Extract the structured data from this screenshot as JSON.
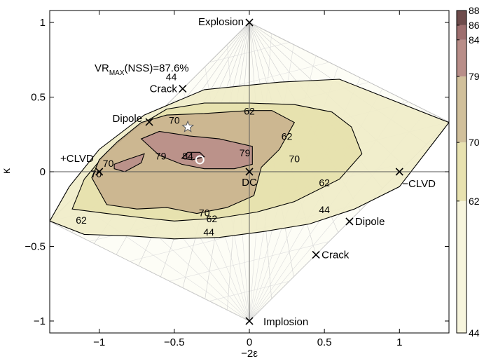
{
  "chart_data": {
    "type": "contour",
    "xlabel": "−2ε",
    "ylabel": "κ",
    "xlim": [
      -1.33,
      1.33
    ],
    "ylim": [
      -1.08,
      1.08
    ],
    "xticks": [
      {
        "v": -1,
        "label": "−1"
      },
      {
        "v": -0.5,
        "label": "−0.5"
      },
      {
        "v": 0,
        "label": "0"
      },
      {
        "v": 0.5,
        "label": "0.5"
      },
      {
        "v": 1,
        "label": "1"
      }
    ],
    "yticks": [
      {
        "v": 1,
        "label": "1"
      },
      {
        "v": 0.5,
        "label": "0.5"
      },
      {
        "v": 0,
        "label": "0"
      },
      {
        "v": -0.5,
        "label": "−0.5"
      },
      {
        "v": -1,
        "label": "−1"
      }
    ],
    "annotation": {
      "prefix": "VR",
      "subscript": "MAX",
      "suffix": "(NSS)=87.6%"
    },
    "source_points": [
      {
        "label": "Explosion",
        "x": 0,
        "y": 1
      },
      {
        "label": "Crack",
        "x": -0.444,
        "y": 0.556
      },
      {
        "label": "Dipole",
        "x": -0.667,
        "y": 0.333
      },
      {
        "label": "+CLVD",
        "x": -1,
        "y": 0
      },
      {
        "label": "DC",
        "x": 0,
        "y": 0
      },
      {
        "label": "−CLVD",
        "x": 1,
        "y": 0
      },
      {
        "label": "Dipole",
        "x": 0.667,
        "y": -0.333
      },
      {
        "label": "Crack",
        "x": 0.444,
        "y": -0.556
      },
      {
        "label": "Implosion",
        "x": 0,
        "y": -1
      }
    ],
    "best_fit_star": {
      "x": -0.41,
      "y": 0.3
    },
    "best_fit_circle": {
      "x": -0.33,
      "y": 0.08
    },
    "contours": [
      {
        "level": 44,
        "color": "#f0ecc8",
        "points": [
          [
            -1.33,
            -0.33
          ],
          [
            -1.1,
            -0.42
          ],
          [
            -0.8,
            -0.43
          ],
          [
            -0.5,
            -0.45
          ],
          [
            -0.2,
            -0.44
          ],
          [
            0.1,
            -0.4
          ],
          [
            0.4,
            -0.35
          ],
          [
            0.7,
            -0.25
          ],
          [
            1.0,
            -0.1
          ],
          [
            1.33,
            0.33
          ],
          [
            0.9,
            0.5
          ],
          [
            0.6,
            0.62
          ],
          [
            0.2,
            0.6
          ],
          [
            -0.3,
            0.55
          ],
          [
            -0.7,
            0.38
          ],
          [
            -1.0,
            0.15
          ],
          [
            -1.2,
            -0.1
          ]
        ]
      },
      {
        "level": 62,
        "color": "#e6e0ac",
        "points": [
          [
            -1.18,
            -0.25
          ],
          [
            -0.95,
            -0.28
          ],
          [
            -0.7,
            -0.31
          ],
          [
            -0.5,
            -0.33
          ],
          [
            -0.2,
            -0.31
          ],
          [
            0.05,
            -0.27
          ],
          [
            0.3,
            -0.2
          ],
          [
            0.6,
            -0.05
          ],
          [
            0.75,
            0.12
          ],
          [
            0.68,
            0.3
          ],
          [
            0.55,
            0.4
          ],
          [
            0.3,
            0.45
          ],
          [
            0,
            0.46
          ],
          [
            -0.3,
            0.46
          ],
          [
            -0.55,
            0.42
          ],
          [
            -0.75,
            0.3
          ],
          [
            -0.95,
            0.13
          ],
          [
            -1.1,
            -0.05
          ]
        ]
      },
      {
        "level": 70,
        "color": "#c9b28e",
        "points": [
          [
            -1.05,
            -0.04
          ],
          [
            -0.95,
            -0.22
          ],
          [
            -0.75,
            -0.25
          ],
          [
            -0.55,
            -0.24
          ],
          [
            -0.35,
            -0.28
          ],
          [
            -0.15,
            -0.24
          ],
          [
            0.03,
            -0.16
          ],
          [
            0.08,
            0.03
          ],
          [
            0.2,
            0.15
          ],
          [
            0.3,
            0.33
          ],
          [
            0.15,
            0.41
          ],
          [
            0,
            0.41
          ],
          [
            -0.3,
            0.39
          ],
          [
            -0.55,
            0.38
          ],
          [
            -0.72,
            0.33
          ],
          [
            -0.88,
            0.2
          ],
          [
            -1.0,
            0.08
          ]
        ]
      },
      {
        "level": 79,
        "color": "#b98e89",
        "points": [
          [
            -0.72,
            0.22
          ],
          [
            -0.6,
            0.11
          ],
          [
            -0.45,
            0.05
          ],
          [
            -0.3,
            0.02
          ],
          [
            -0.1,
            0.02
          ],
          [
            0.02,
            0.05
          ],
          [
            0.02,
            0.17
          ],
          [
            -0.2,
            0.22
          ],
          [
            -0.4,
            0.24
          ],
          [
            -0.6,
            0.27
          ]
        ]
      },
      {
        "level": 79,
        "color": "#b98e89",
        "points": [
          [
            -0.9,
            0.02
          ],
          [
            -0.83,
            0
          ],
          [
            -0.72,
            0.06
          ],
          [
            -0.7,
            0.12
          ],
          [
            -0.82,
            0.08
          ],
          [
            -0.9,
            0.05
          ]
        ]
      },
      {
        "level": 84,
        "color": "#9e6f6f",
        "points": [
          [
            -0.45,
            0.09
          ],
          [
            -0.38,
            0.08
          ],
          [
            -0.3,
            0.1
          ],
          [
            -0.33,
            0.13
          ],
          [
            -0.41,
            0.13
          ]
        ]
      }
    ],
    "contour_labels": [
      {
        "text": "44",
        "x": -0.52,
        "y": 0.63
      },
      {
        "text": "62",
        "x": 0.0,
        "y": 0.4
      },
      {
        "text": "70",
        "x": -0.5,
        "y": 0.34
      },
      {
        "text": "62",
        "x": 0.25,
        "y": 0.23
      },
      {
        "text": "70",
        "x": 0.3,
        "y": 0.08
      },
      {
        "text": "79",
        "x": -0.59,
        "y": 0.1
      },
      {
        "text": "84",
        "x": -0.41,
        "y": 0.1
      },
      {
        "text": "79",
        "x": -0.03,
        "y": 0.12
      },
      {
        "text": "70",
        "x": -0.94,
        "y": 0.05
      },
      {
        "text": "70",
        "x": -1.02,
        "y": -0.02
      },
      {
        "text": "62",
        "x": 0.5,
        "y": -0.08
      },
      {
        "text": "70",
        "x": -0.3,
        "y": -0.28
      },
      {
        "text": "62",
        "x": -0.25,
        "y": -0.32
      },
      {
        "text": "44",
        "x": 0.5,
        "y": -0.26
      },
      {
        "text": "44",
        "x": -0.27,
        "y": -0.41
      },
      {
        "text": "62",
        "x": -1.12,
        "y": -0.33
      }
    ],
    "colorbar": {
      "ticks": [
        88,
        86,
        84,
        79,
        70,
        62,
        44
      ],
      "colors": [
        "#f7f5dd",
        "#e8e2b0",
        "#d1c09b",
        "#b98e89",
        "#9e6f6f",
        "#6e4c4c"
      ]
    },
    "grid": true
  }
}
